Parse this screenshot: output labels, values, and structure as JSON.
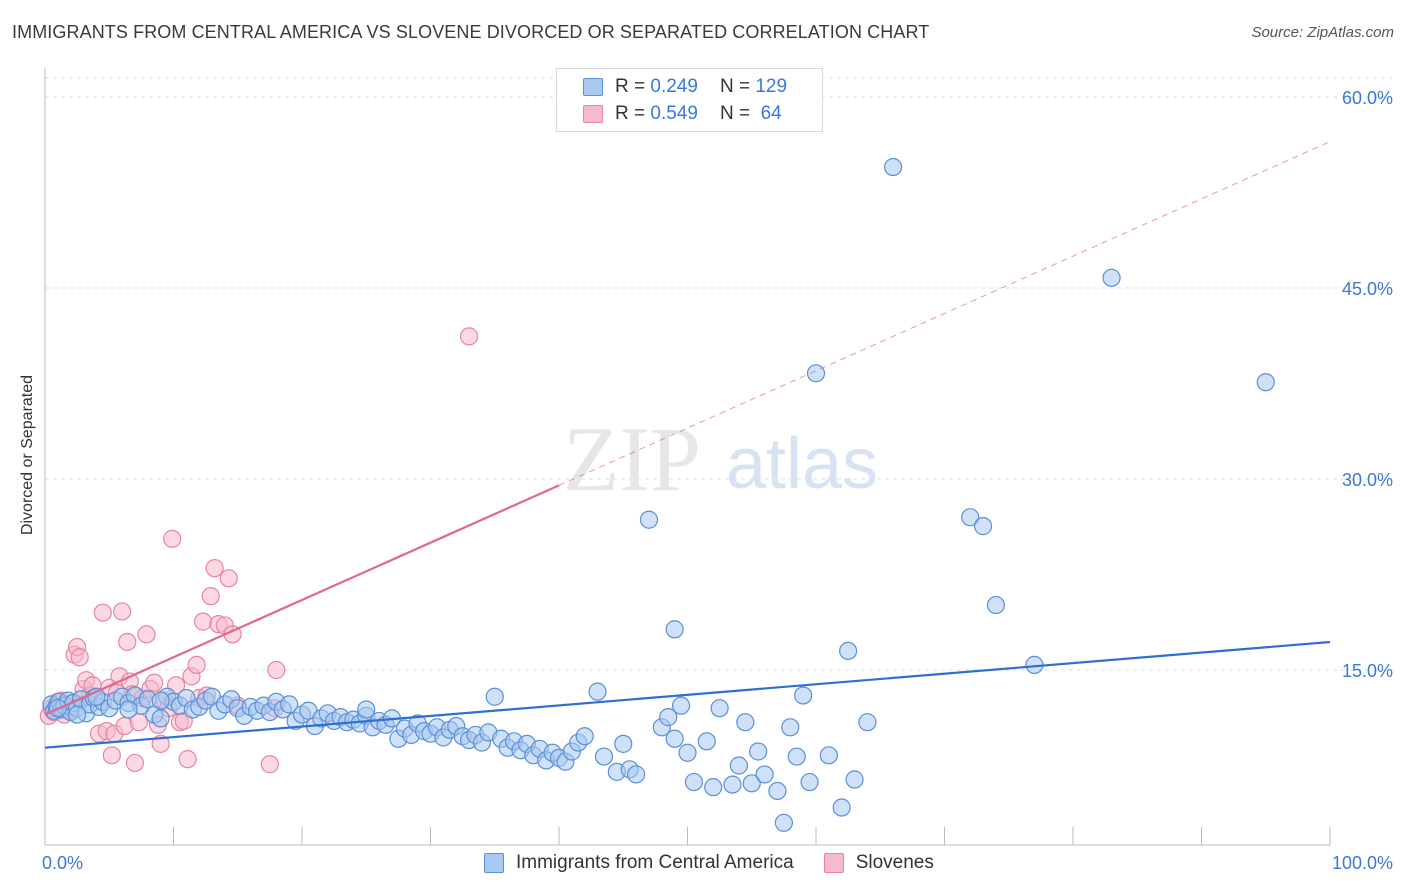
{
  "title": "IMMIGRANTS FROM CENTRAL AMERICA VS SLOVENE DIVORCED OR SEPARATED CORRELATION CHART",
  "source": "Source: ZipAtlas.com",
  "watermark": {
    "zip": "ZIP",
    "atlas": "atlas"
  },
  "legend": {
    "rows": [
      {
        "r_label": "R =",
        "r_value": "0.249",
        "n_label": "N =",
        "n_value": "129"
      },
      {
        "r_label": "R =",
        "r_value": "0.549",
        "n_label": "N =",
        "n_value": "64"
      }
    ]
  },
  "colors": {
    "blue_fill": "#a8c8f0",
    "blue_stroke": "#5b8fd6",
    "blue_line": "#2e6fd0",
    "pink_fill": "#f7b9cc",
    "pink_stroke": "#e8849f",
    "pink_line": "#e0688f",
    "axis_text": "#3a78d8",
    "grid": "#dddddd"
  },
  "chart_data": {
    "type": "scatter",
    "title": "IMMIGRANTS FROM CENTRAL AMERICA VS SLOVENE DIVORCED OR SEPARATED CORRELATION CHART",
    "xlabel": "",
    "ylabel": "Divorced or Separated",
    "xlim": [
      0,
      100
    ],
    "ylim": [
      0,
      60
    ],
    "x_tick_labels": [
      "0.0%",
      "100.0%"
    ],
    "y_ticks": [
      15,
      30,
      45,
      60
    ],
    "y_tick_labels": [
      "15.0%",
      "30.0%",
      "45.0%",
      "60.0%"
    ],
    "grid": true,
    "legend_position": "top-center",
    "series": [
      {
        "name": "Immigrants from Central America",
        "color": "#a8c8f0",
        "trend": {
          "x": [
            0,
            100
          ],
          "y": [
            8.9,
            17.2
          ]
        },
        "points": [
          [
            0.5,
            12.3
          ],
          [
            0.7,
            11.8
          ],
          [
            0.9,
            12.1
          ],
          [
            1.1,
            12.5
          ],
          [
            1.3,
            11.9
          ],
          [
            1.5,
            12.2
          ],
          [
            1.8,
            12.6
          ],
          [
            2.0,
            11.7
          ],
          [
            2.2,
            12.4
          ],
          [
            2.5,
            12.0
          ],
          [
            2.8,
            12.7
          ],
          [
            3.2,
            11.6
          ],
          [
            3.5,
            12.3
          ],
          [
            3.8,
            12.8
          ],
          [
            4.2,
            12.1
          ],
          [
            4.5,
            12.5
          ],
          [
            5.0,
            12.0
          ],
          [
            5.5,
            12.6
          ],
          [
            6.0,
            12.9
          ],
          [
            6.5,
            12.4
          ],
          [
            7.0,
            13.0
          ],
          [
            7.5,
            12.2
          ],
          [
            8.0,
            12.7
          ],
          [
            8.5,
            11.5
          ],
          [
            9.0,
            11.2
          ],
          [
            9.5,
            12.9
          ],
          [
            10.0,
            12.5
          ],
          [
            10.5,
            12.2
          ],
          [
            11.0,
            12.8
          ],
          [
            11.5,
            11.9
          ],
          [
            12.0,
            12.1
          ],
          [
            12.5,
            12.6
          ],
          [
            13.0,
            12.9
          ],
          [
            13.5,
            11.8
          ],
          [
            14.0,
            12.3
          ],
          [
            14.5,
            12.7
          ],
          [
            15.0,
            12.0
          ],
          [
            15.5,
            11.4
          ],
          [
            16.0,
            12.1
          ],
          [
            16.5,
            11.8
          ],
          [
            17.0,
            12.2
          ],
          [
            17.5,
            11.7
          ],
          [
            18.0,
            12.5
          ],
          [
            18.5,
            11.9
          ],
          [
            19.0,
            12.3
          ],
          [
            19.5,
            11.0
          ],
          [
            20.0,
            11.5
          ],
          [
            20.5,
            11.8
          ],
          [
            21.0,
            10.6
          ],
          [
            21.5,
            11.2
          ],
          [
            22.0,
            11.6
          ],
          [
            22.5,
            11.0
          ],
          [
            23.0,
            11.3
          ],
          [
            23.5,
            10.9
          ],
          [
            24.0,
            11.1
          ],
          [
            24.5,
            10.8
          ],
          [
            25.0,
            11.4
          ],
          [
            25.5,
            10.5
          ],
          [
            26.0,
            11.0
          ],
          [
            26.5,
            10.7
          ],
          [
            27.0,
            11.2
          ],
          [
            27.5,
            9.6
          ],
          [
            28.0,
            10.4
          ],
          [
            28.5,
            9.9
          ],
          [
            29.0,
            10.8
          ],
          [
            29.5,
            10.2
          ],
          [
            30.0,
            10.0
          ],
          [
            30.5,
            10.5
          ],
          [
            31.0,
            9.7
          ],
          [
            31.5,
            10.3
          ],
          [
            32.0,
            10.6
          ],
          [
            32.5,
            9.8
          ],
          [
            33.0,
            9.5
          ],
          [
            33.5,
            9.9
          ],
          [
            34.0,
            9.3
          ],
          [
            34.5,
            10.1
          ],
          [
            35.0,
            12.9
          ],
          [
            35.5,
            9.6
          ],
          [
            36.0,
            8.9
          ],
          [
            36.5,
            9.4
          ],
          [
            37.0,
            8.7
          ],
          [
            37.5,
            9.2
          ],
          [
            38.0,
            8.3
          ],
          [
            38.5,
            8.8
          ],
          [
            39.0,
            7.9
          ],
          [
            39.5,
            8.5
          ],
          [
            40.0,
            8.1
          ],
          [
            40.5,
            7.8
          ],
          [
            41.0,
            8.6
          ],
          [
            41.5,
            9.3
          ],
          [
            42.0,
            9.8
          ],
          [
            43.0,
            13.3
          ],
          [
            43.5,
            8.2
          ],
          [
            44.5,
            7.0
          ],
          [
            45.0,
            9.2
          ],
          [
            45.5,
            7.2
          ],
          [
            46.0,
            6.8
          ],
          [
            47.0,
            26.8
          ],
          [
            48.0,
            10.5
          ],
          [
            48.5,
            11.3
          ],
          [
            49.0,
            9.6
          ],
          [
            49.5,
            12.2
          ],
          [
            50.0,
            8.5
          ],
          [
            50.5,
            6.2
          ],
          [
            51.5,
            9.4
          ],
          [
            52.0,
            5.8
          ],
          [
            52.5,
            12.0
          ],
          [
            53.5,
            6.0
          ],
          [
            54.0,
            7.5
          ],
          [
            54.5,
            10.9
          ],
          [
            55.0,
            6.1
          ],
          [
            55.5,
            8.6
          ],
          [
            56.0,
            6.8
          ],
          [
            57.0,
            5.5
          ],
          [
            57.5,
            3.0
          ],
          [
            58.0,
            10.5
          ],
          [
            58.5,
            8.2
          ],
          [
            59.0,
            13.0
          ],
          [
            59.5,
            6.2
          ],
          [
            60.0,
            38.3
          ],
          [
            61.0,
            8.3
          ],
          [
            62.0,
            4.2
          ],
          [
            62.5,
            16.5
          ],
          [
            63.0,
            6.4
          ],
          [
            64.0,
            10.9
          ],
          [
            66.0,
            54.5
          ],
          [
            72.0,
            27.0
          ],
          [
            73.0,
            26.3
          ],
          [
            74.0,
            20.1
          ],
          [
            77.0,
            15.4
          ],
          [
            83.0,
            45.8
          ],
          [
            95.0,
            37.6
          ],
          [
            49.0,
            18.2
          ],
          [
            1.0,
            12.0
          ],
          [
            2.5,
            11.5
          ],
          [
            4.0,
            12.9
          ],
          [
            6.5,
            11.9
          ],
          [
            9.0,
            12.6
          ],
          [
            25.0,
            11.9
          ]
        ]
      },
      {
        "name": "Slovenes",
        "color": "#f7b9cc",
        "trend": {
          "x": [
            0,
            40
          ],
          "y": [
            11.5,
            29.5
          ]
        },
        "points": [
          [
            0.3,
            11.4
          ],
          [
            0.5,
            12.0
          ],
          [
            0.7,
            11.7
          ],
          [
            0.9,
            12.3
          ],
          [
            1.1,
            11.9
          ],
          [
            1.3,
            12.6
          ],
          [
            1.5,
            11.5
          ],
          [
            1.7,
            12.2
          ],
          [
            1.9,
            11.8
          ],
          [
            2.1,
            12.4
          ],
          [
            2.3,
            16.2
          ],
          [
            2.5,
            16.8
          ],
          [
            2.7,
            16.0
          ],
          [
            3.0,
            13.5
          ],
          [
            3.2,
            14.2
          ],
          [
            3.5,
            13.0
          ],
          [
            3.7,
            13.8
          ],
          [
            4.0,
            12.9
          ],
          [
            4.2,
            10.0
          ],
          [
            4.5,
            19.5
          ],
          [
            4.8,
            10.2
          ],
          [
            5.0,
            13.6
          ],
          [
            5.2,
            8.3
          ],
          [
            5.4,
            10.0
          ],
          [
            5.6,
            13.2
          ],
          [
            5.8,
            14.5
          ],
          [
            6.0,
            19.6
          ],
          [
            6.2,
            10.6
          ],
          [
            6.4,
            17.2
          ],
          [
            6.6,
            14.1
          ],
          [
            6.8,
            13.1
          ],
          [
            7.0,
            7.7
          ],
          [
            7.3,
            10.9
          ],
          [
            7.6,
            12.8
          ],
          [
            7.9,
            17.8
          ],
          [
            8.2,
            13.5
          ],
          [
            8.5,
            14.0
          ],
          [
            8.8,
            10.7
          ],
          [
            9.0,
            9.2
          ],
          [
            9.3,
            12.6
          ],
          [
            9.6,
            12.0
          ],
          [
            9.9,
            25.3
          ],
          [
            10.2,
            13.8
          ],
          [
            10.5,
            10.9
          ],
          [
            10.8,
            11.0
          ],
          [
            11.1,
            8.0
          ],
          [
            11.4,
            14.5
          ],
          [
            11.8,
            15.4
          ],
          [
            12.0,
            12.8
          ],
          [
            12.3,
            18.8
          ],
          [
            12.6,
            13.0
          ],
          [
            12.9,
            20.8
          ],
          [
            13.2,
            23.0
          ],
          [
            13.5,
            18.6
          ],
          [
            14.0,
            18.5
          ],
          [
            14.3,
            22.2
          ],
          [
            14.6,
            17.8
          ],
          [
            15.0,
            12.2
          ],
          [
            17.5,
            7.6
          ],
          [
            17.9,
            12.0
          ],
          [
            18.0,
            15.0
          ],
          [
            33.0,
            41.2
          ],
          [
            1.0,
            12.5
          ],
          [
            2.0,
            12.1
          ]
        ]
      }
    ]
  }
}
